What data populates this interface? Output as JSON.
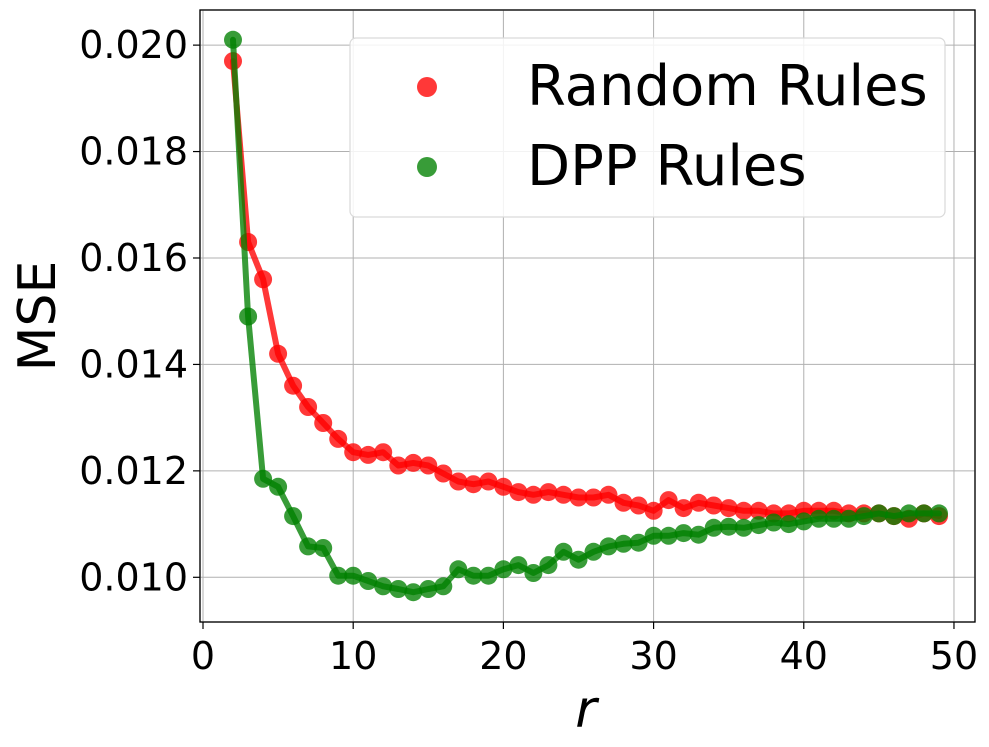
{
  "chart_data": {
    "type": "line",
    "xlabel": "r",
    "ylabel": "MSE",
    "xlim": [
      -0.2,
      51.4
    ],
    "ylim": [
      0.00916,
      0.02066
    ],
    "xticks": [
      0,
      10,
      20,
      30,
      40,
      50
    ],
    "xtick_labels": [
      "0",
      "10",
      "20",
      "30",
      "40",
      "50"
    ],
    "yticks": [
      0.01,
      0.012,
      0.014,
      0.016,
      0.018,
      0.02
    ],
    "ytick_labels": [
      "0.010",
      "0.012",
      "0.014",
      "0.016",
      "0.018",
      "0.020"
    ],
    "grid": true,
    "legend_position": "top-right",
    "series": [
      {
        "name": "Random Rules",
        "color": "#ff0000",
        "x": [
          2,
          3,
          4,
          5,
          6,
          7,
          8,
          9,
          10,
          11,
          12,
          13,
          14,
          15,
          16,
          17,
          18,
          19,
          20,
          21,
          22,
          23,
          24,
          25,
          26,
          27,
          28,
          29,
          30,
          31,
          32,
          33,
          34,
          35,
          36,
          37,
          38,
          39,
          40,
          41,
          42,
          43,
          44,
          45,
          46,
          47,
          48,
          49
        ],
        "y": [
          0.0197,
          0.0163,
          0.0156,
          0.0142,
          0.0136,
          0.0132,
          0.0129,
          0.0126,
          0.01235,
          0.0123,
          0.01235,
          0.0121,
          0.01215,
          0.0121,
          0.01195,
          0.0118,
          0.01175,
          0.0118,
          0.0117,
          0.0116,
          0.01155,
          0.0116,
          0.01155,
          0.0115,
          0.0115,
          0.01155,
          0.0114,
          0.01135,
          0.01125,
          0.01145,
          0.0113,
          0.0114,
          0.01135,
          0.0113,
          0.01125,
          0.01125,
          0.0112,
          0.0112,
          0.01125,
          0.01125,
          0.01125,
          0.0112,
          0.0112,
          0.0112,
          0.01115,
          0.0111,
          0.0112,
          0.01115
        ]
      },
      {
        "name": "DPP Rules",
        "color": "#008000",
        "x": [
          2,
          3,
          4,
          5,
          6,
          7,
          8,
          9,
          10,
          11,
          12,
          13,
          14,
          15,
          16,
          17,
          18,
          19,
          20,
          21,
          22,
          23,
          24,
          25,
          26,
          27,
          28,
          29,
          30,
          31,
          32,
          33,
          34,
          35,
          36,
          37,
          38,
          39,
          40,
          41,
          42,
          43,
          44,
          45,
          46,
          47,
          48,
          49
        ],
        "y": [
          0.0201,
          0.0149,
          0.01185,
          0.0117,
          0.01115,
          0.01058,
          0.01055,
          0.01003,
          0.01003,
          0.00993,
          0.00983,
          0.00978,
          0.00972,
          0.00978,
          0.00983,
          0.01015,
          0.01003,
          0.01003,
          0.01015,
          0.01023,
          0.01008,
          0.01023,
          0.01048,
          0.01033,
          0.01048,
          0.01058,
          0.01063,
          0.01065,
          0.01078,
          0.01078,
          0.01083,
          0.0108,
          0.01093,
          0.01095,
          0.01093,
          0.01098,
          0.01103,
          0.011,
          0.01105,
          0.0111,
          0.0111,
          0.0111,
          0.01115,
          0.0112,
          0.01115,
          0.0112,
          0.0112,
          0.0112
        ]
      }
    ]
  }
}
